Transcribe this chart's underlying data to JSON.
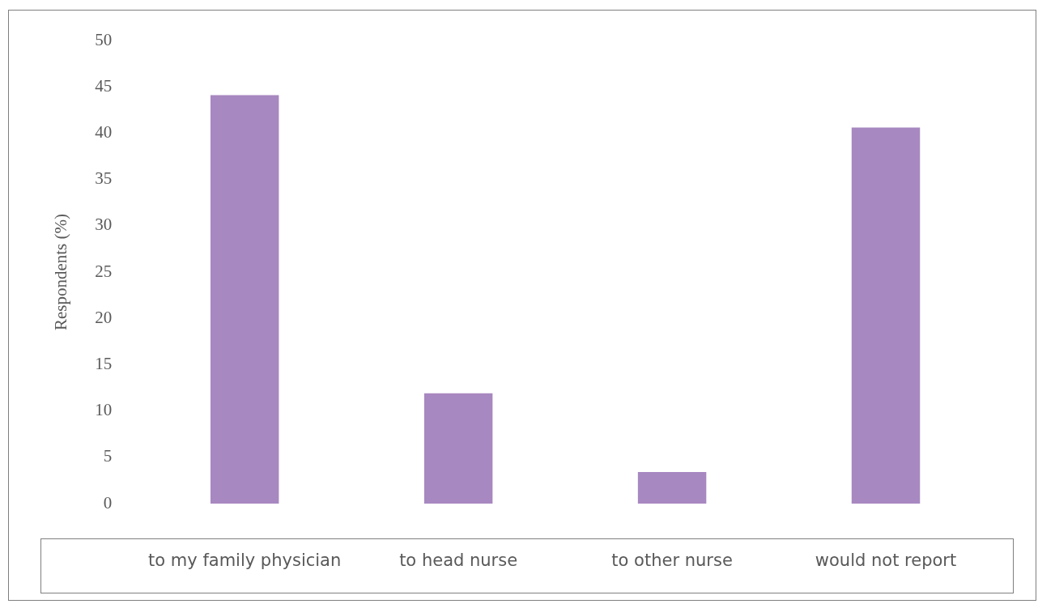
{
  "chart_data": {
    "type": "bar",
    "categories": [
      "to my family physician",
      "to head nurse",
      "to other nurse",
      "would not report"
    ],
    "values": [
      44.1,
      11.9,
      3.4,
      40.6
    ],
    "color": "#a888c0",
    "ylabel": "Respondents (%)",
    "ylim": [
      0,
      50
    ],
    "yticks": [
      0,
      5,
      10,
      15,
      20,
      25,
      30,
      35,
      40,
      45,
      50
    ],
    "grid": false,
    "legend": false
  }
}
